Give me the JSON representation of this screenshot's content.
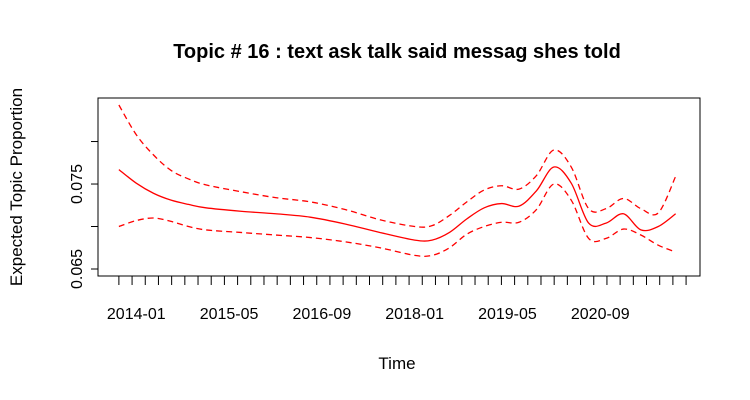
{
  "chart_data": {
    "type": "line",
    "title": "Topic # 16 :  text ask talk said messag shes told",
    "xlabel": "Time",
    "ylabel": "Expected Topic Proportion",
    "x_tick_labels": [
      "2014-01",
      "2015-05",
      "2016-09",
      "2018-01",
      "2019-05",
      "2020-09"
    ],
    "y_tick_labels": [
      "0.065",
      "0.075"
    ],
    "y_ticks": [
      0.065,
      0.07,
      0.075,
      0.08
    ],
    "x_minor_ticks": 44,
    "xlim": [
      2013.45,
      2022.1
    ],
    "ylim": [
      0.065,
      0.0843
    ],
    "color": "#ff0000",
    "grid": false,
    "legend": "none",
    "series": [
      {
        "style": "solid",
        "x": [
          2013.75,
          2014.0,
          2014.25,
          2014.5,
          2014.75,
          2015.0,
          2015.5,
          2016.0,
          2016.5,
          2017.0,
          2017.5,
          2018.0,
          2018.25,
          2018.5,
          2018.75,
          2019.0,
          2019.25,
          2019.5,
          2019.75,
          2020.0,
          2020.25,
          2020.5,
          2020.75,
          2021.0,
          2021.25,
          2021.5,
          2021.75
        ],
        "values": [
          0.0767,
          0.0751,
          0.0739,
          0.0731,
          0.0726,
          0.0722,
          0.0718,
          0.0715,
          0.0711,
          0.0703,
          0.0693,
          0.0684,
          0.0684,
          0.0693,
          0.0709,
          0.0722,
          0.0727,
          0.0724,
          0.0742,
          0.077,
          0.0751,
          0.0704,
          0.0704,
          0.0715,
          0.0696,
          0.07,
          0.0715
        ]
      },
      {
        "style": "dashed",
        "x": [
          2013.75,
          2014.0,
          2014.25,
          2014.5,
          2014.75,
          2015.0,
          2015.5,
          2016.0,
          2016.5,
          2017.0,
          2017.5,
          2018.0,
          2018.25,
          2018.5,
          2018.75,
          2019.0,
          2019.25,
          2019.5,
          2019.75,
          2020.0,
          2020.25,
          2020.5,
          2020.75,
          2021.0,
          2021.25,
          2021.5,
          2021.75
        ],
        "values": [
          0.0843,
          0.0808,
          0.0784,
          0.0766,
          0.0756,
          0.0749,
          0.0741,
          0.0734,
          0.0729,
          0.072,
          0.0708,
          0.07,
          0.0701,
          0.0713,
          0.0729,
          0.0743,
          0.0748,
          0.0744,
          0.076,
          0.079,
          0.077,
          0.0721,
          0.0721,
          0.0733,
          0.0721,
          0.0716,
          0.0759
        ]
      },
      {
        "style": "dashed",
        "x": [
          2013.75,
          2014.0,
          2014.25,
          2014.5,
          2014.75,
          2015.0,
          2015.5,
          2016.0,
          2016.5,
          2017.0,
          2017.5,
          2018.0,
          2018.25,
          2018.5,
          2018.75,
          2019.0,
          2019.25,
          2019.5,
          2019.75,
          2020.0,
          2020.25,
          2020.5,
          2020.75,
          2021.0,
          2021.25,
          2021.5,
          2021.75
        ],
        "values": [
          0.07,
          0.0707,
          0.071,
          0.0706,
          0.07,
          0.0696,
          0.0693,
          0.069,
          0.0687,
          0.0682,
          0.0675,
          0.0666,
          0.0666,
          0.0675,
          0.0691,
          0.07,
          0.0705,
          0.0705,
          0.072,
          0.075,
          0.0731,
          0.0686,
          0.0686,
          0.0697,
          0.069,
          0.0678,
          0.067
        ]
      }
    ]
  }
}
